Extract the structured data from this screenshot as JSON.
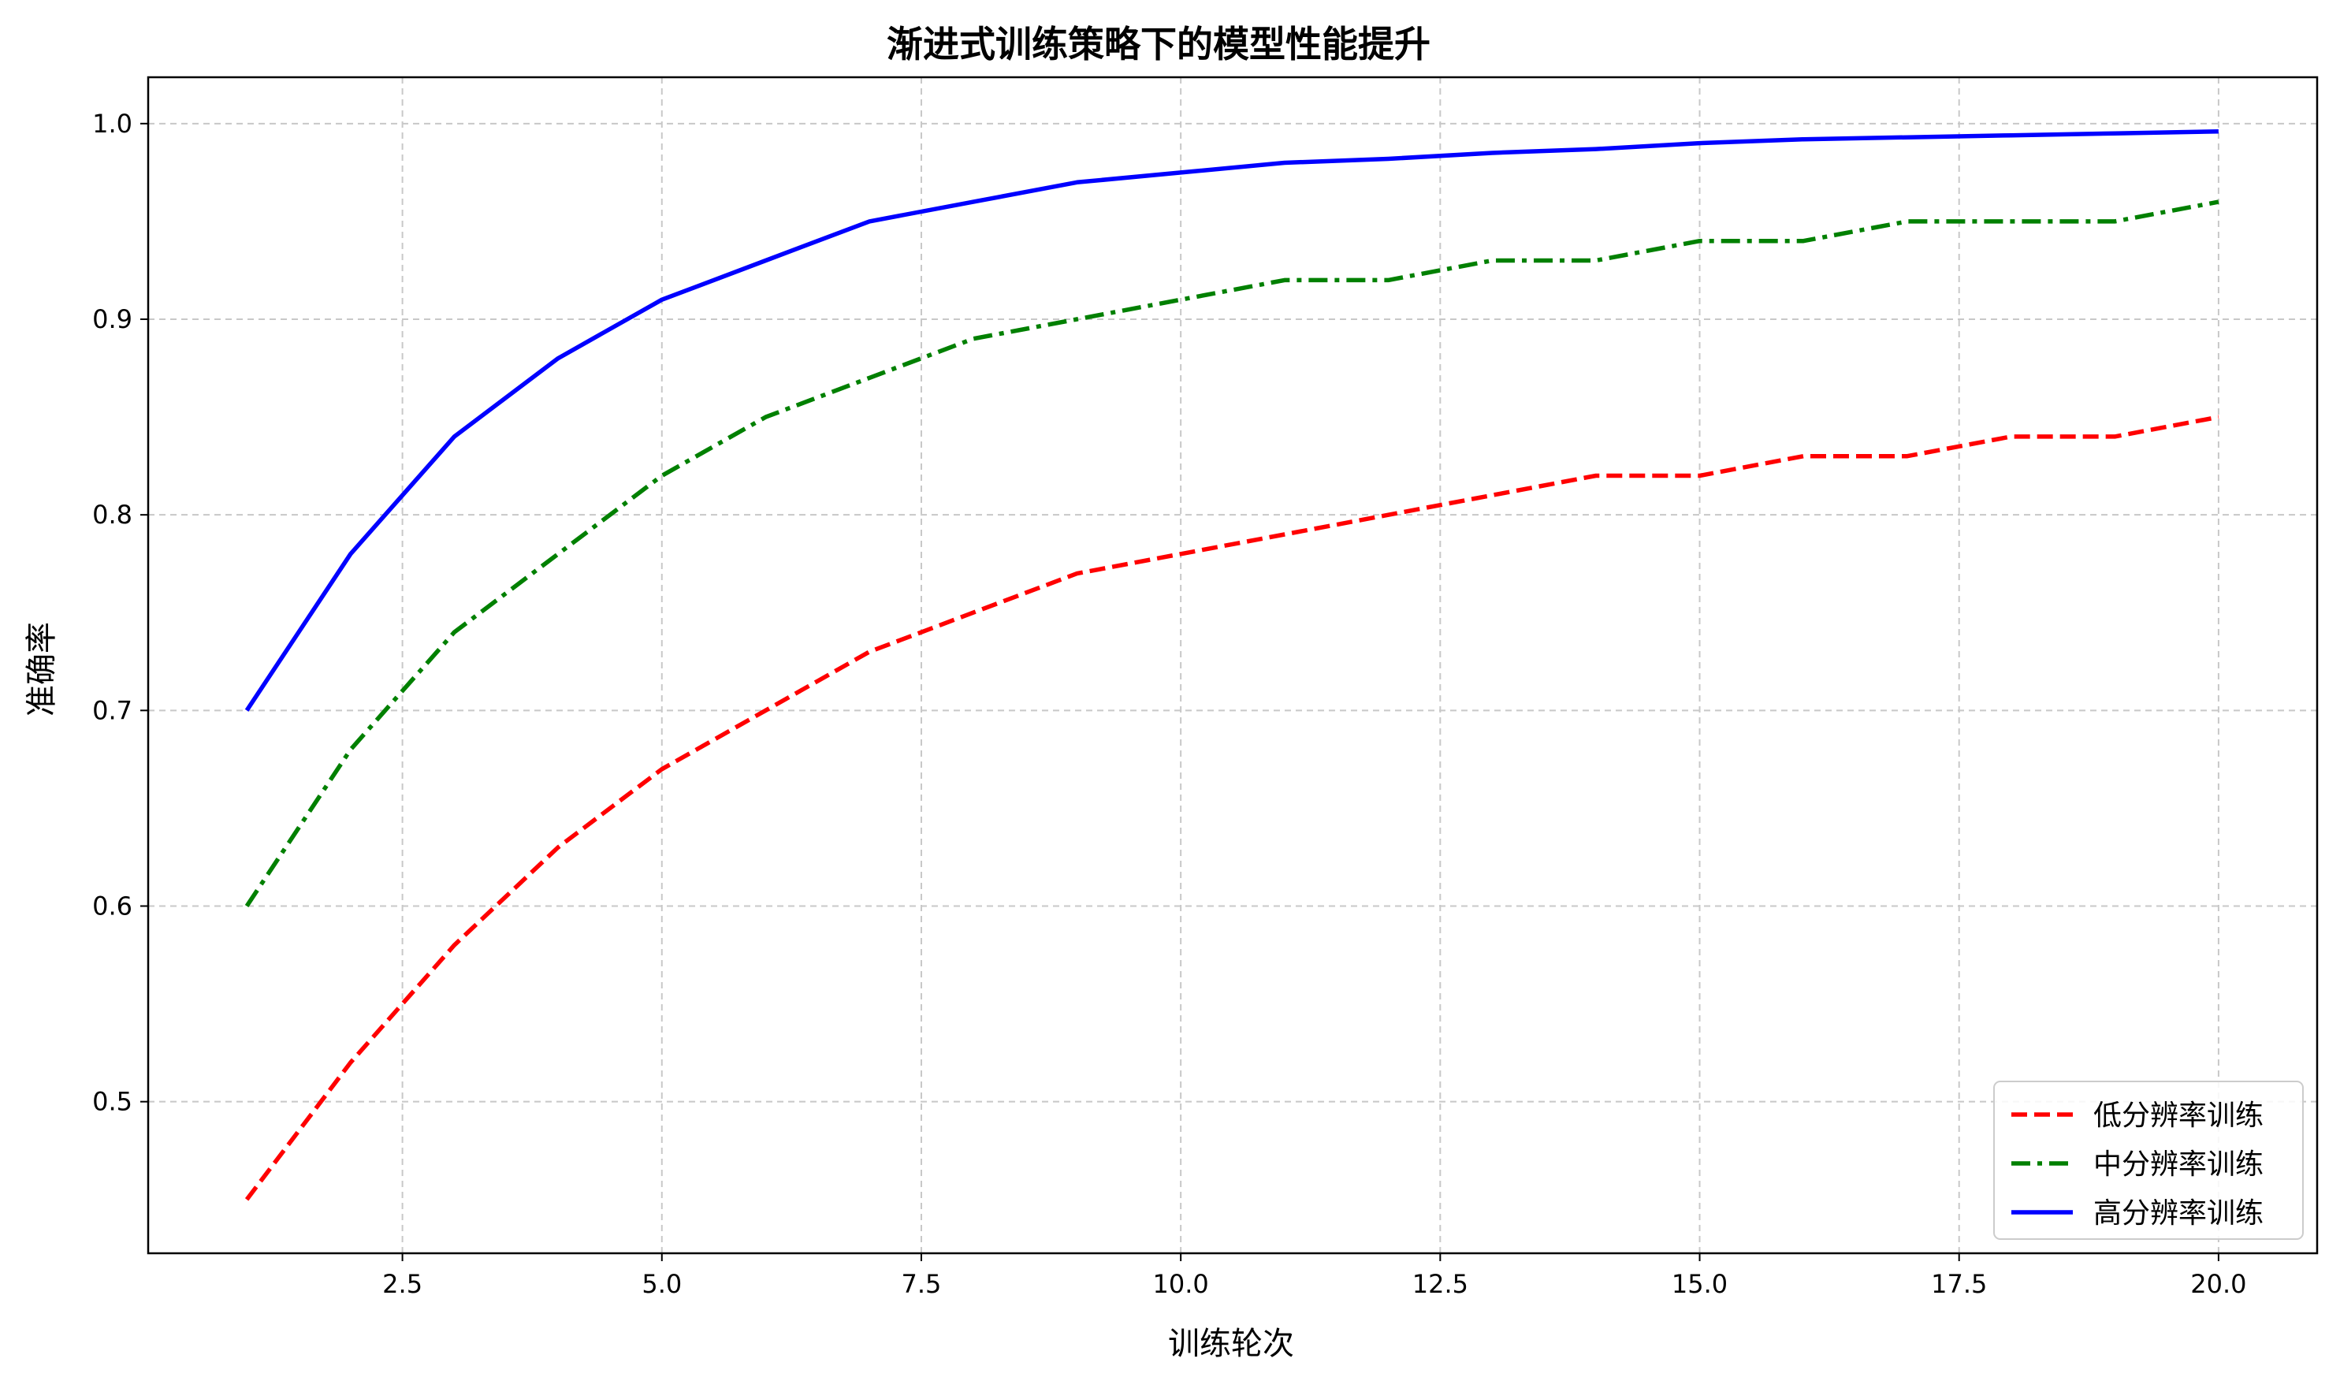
{
  "chart_data": {
    "type": "line",
    "title": "渐进式训练策略下的模型性能提升",
    "xlabel": "训练轮次",
    "ylabel": "准确率",
    "xlim": [
      0.05,
      20.95
    ],
    "ylim": [
      0.4225,
      1.0237
    ],
    "xticks": [
      2.5,
      5.0,
      7.5,
      10.0,
      12.5,
      15.0,
      17.5,
      20.0
    ],
    "xtick_labels": [
      "2.5",
      "5.0",
      "7.5",
      "10.0",
      "12.5",
      "15.0",
      "17.5",
      "20.0"
    ],
    "yticks": [
      0.5,
      0.6,
      0.7,
      0.8,
      0.9,
      1.0
    ],
    "ytick_labels": [
      "0.5",
      "0.6",
      "0.7",
      "0.8",
      "0.9",
      "1.0"
    ],
    "grid": true,
    "legend_position": "lower-right",
    "x": [
      1,
      2,
      3,
      4,
      5,
      6,
      7,
      8,
      9,
      10,
      11,
      12,
      13,
      14,
      15,
      16,
      17,
      18,
      19,
      20
    ],
    "series": [
      {
        "name": "低分辨率训练",
        "color": "#ff0000",
        "dash": "dashed",
        "values": [
          0.45,
          0.52,
          0.58,
          0.63,
          0.67,
          0.7,
          0.73,
          0.75,
          0.77,
          0.78,
          0.79,
          0.8,
          0.81,
          0.82,
          0.82,
          0.83,
          0.83,
          0.84,
          0.84,
          0.85
        ]
      },
      {
        "name": "中分辨率训练",
        "color": "#008000",
        "dash": "dashdot",
        "values": [
          0.6,
          0.68,
          0.74,
          0.78,
          0.82,
          0.85,
          0.87,
          0.89,
          0.9,
          0.91,
          0.92,
          0.92,
          0.93,
          0.93,
          0.94,
          0.94,
          0.95,
          0.95,
          0.95,
          0.96
        ]
      },
      {
        "name": "高分辨率训练",
        "color": "#0000ff",
        "dash": "solid",
        "values": [
          0.7,
          0.78,
          0.84,
          0.88,
          0.91,
          0.93,
          0.95,
          0.96,
          0.97,
          0.975,
          0.98,
          0.982,
          0.985,
          0.987,
          0.99,
          0.992,
          0.993,
          0.994,
          0.995,
          0.996
        ]
      }
    ]
  }
}
